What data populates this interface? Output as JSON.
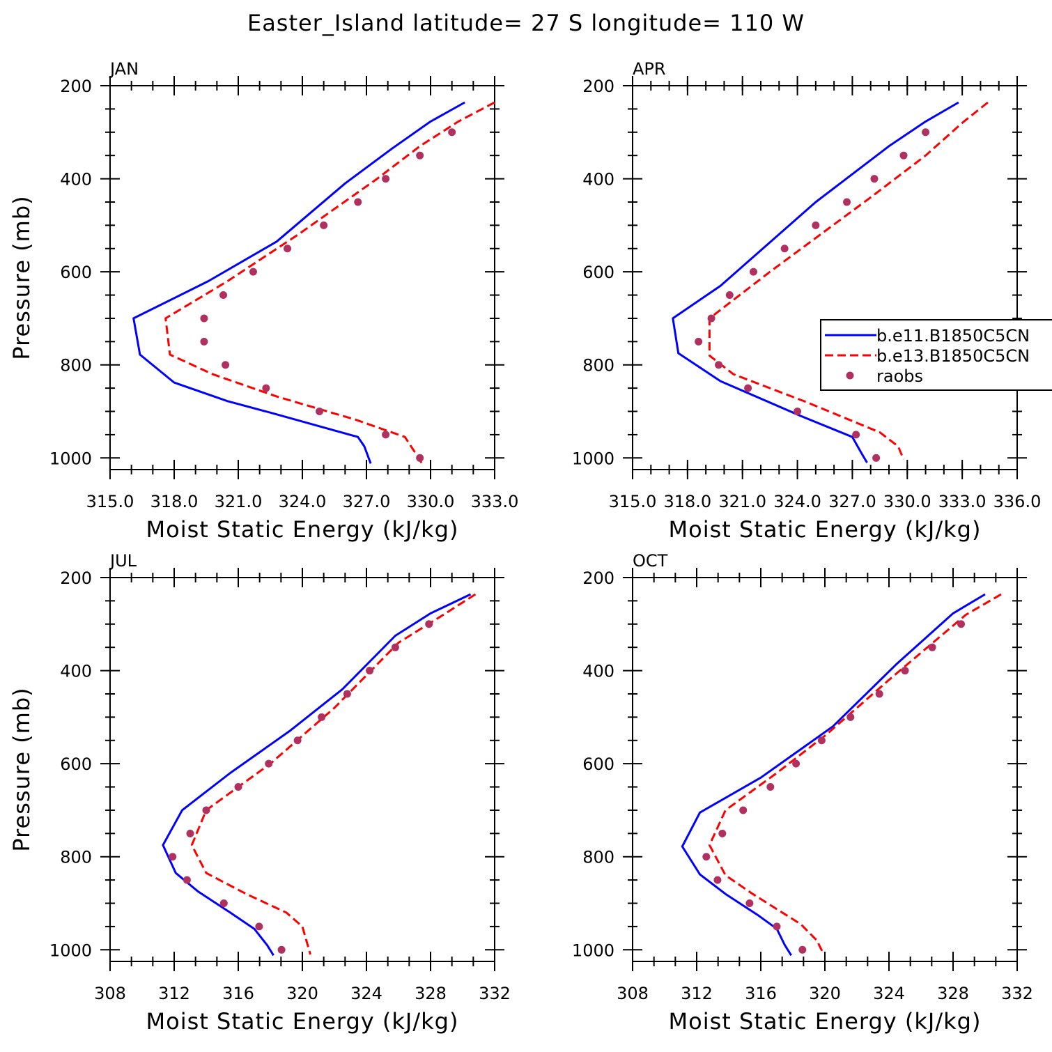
{
  "title": "Easter_Island  latitude= 27 S longitude= 110 W",
  "colors": {
    "b11": "#0000ff",
    "b13": "#ff0000",
    "raobs": "#b03060",
    "axis": "#000000"
  },
  "legend": {
    "placement": "right, in APR panel",
    "entries": [
      {
        "label": "b.e11.B1850C5CN",
        "style": "solid",
        "color": "#0000ff"
      },
      {
        "label": "b.e13.B1850C5CN",
        "style": "dashed",
        "color": "#ff0000"
      },
      {
        "label": "raobs",
        "style": "marker",
        "color": "#b03060"
      }
    ]
  },
  "chart_data": [
    {
      "type": "line",
      "panel": "JAN",
      "xlabel": "Moist Static Energy (kJ/kg)",
      "ylabel": "Pressure (mb)",
      "xlim": [
        315,
        333
      ],
      "ylim": [
        1000,
        200
      ],
      "xticks": [
        315,
        318,
        321,
        324,
        327,
        330,
        333
      ],
      "xtick_labels": [
        "315.0",
        "318.0",
        "321.0",
        "324.0",
        "327.0",
        "330.0",
        "333.0"
      ],
      "yticks": [
        200,
        400,
        600,
        800,
        1000
      ],
      "series": [
        {
          "name": "b.e11.B1850C5CN",
          "style": "solid",
          "color": "#0000ff",
          "x": [
            331.6,
            330.0,
            328.2,
            326.0,
            322.8,
            319.6,
            316.1,
            316.4,
            318.0,
            320.5,
            322.7,
            326.6,
            326.9,
            327.2
          ],
          "y": [
            236,
            277,
            335,
            410,
            535,
            620,
            700,
            778,
            838,
            878,
            905,
            955,
            975,
            1012
          ]
        },
        {
          "name": "b.e13.B1850C5CN",
          "style": "dashed",
          "color": "#ff0000",
          "x": [
            333.0,
            331.3,
            329.5,
            327.5,
            323.8,
            320.5,
            317.6,
            317.8,
            319.8,
            322.8,
            326.5,
            328.8,
            329.3,
            329.6
          ],
          "y": [
            236,
            277,
            330,
            400,
            520,
            620,
            700,
            778,
            820,
            868,
            918,
            955,
            990,
            1012
          ]
        }
      ],
      "points": {
        "name": "raobs",
        "x": [
          331.0,
          329.5,
          327.9,
          326.6,
          325.0,
          323.3,
          321.7,
          320.3,
          319.4,
          319.4,
          320.4,
          322.3,
          324.8,
          327.9,
          329.5
        ],
        "y": [
          300,
          350,
          400,
          450,
          500,
          550,
          600,
          650,
          700,
          750,
          800,
          850,
          900,
          950,
          1000
        ]
      }
    },
    {
      "type": "line",
      "panel": "APR",
      "xlabel": "Moist Static Energy (kJ/kg)",
      "ylabel": "",
      "xlim": [
        315,
        336
      ],
      "ylim": [
        1000,
        200
      ],
      "xticks": [
        315,
        318,
        321,
        324,
        327,
        330,
        333,
        336
      ],
      "xtick_labels": [
        "315.0",
        "318.0",
        "321.0",
        "324.0",
        "327.0",
        "330.0",
        "333.0",
        "336.0"
      ],
      "yticks": [
        200,
        400,
        600,
        800,
        1000
      ],
      "series": [
        {
          "name": "b.e11.B1850C5CN",
          "style": "solid",
          "color": "#0000ff",
          "x": [
            332.8,
            331.0,
            329.0,
            325.0,
            319.8,
            317.2,
            317.5,
            319.8,
            324.2,
            327.0,
            327.5,
            327.8
          ],
          "y": [
            236,
            277,
            330,
            450,
            630,
            700,
            775,
            835,
            910,
            955,
            990,
            1010
          ]
        },
        {
          "name": "b.e13.B1850C5CN",
          "style": "dashed",
          "color": "#ff0000",
          "x": [
            334.4,
            333.0,
            331.0,
            328.0,
            322.5,
            319.2,
            319.2,
            320.5,
            324.5,
            328.5,
            329.5,
            329.8
          ],
          "y": [
            236,
            280,
            350,
            440,
            600,
            700,
            780,
            820,
            880,
            945,
            975,
            1003
          ]
        }
      ],
      "points": {
        "name": "raobs",
        "x": [
          331.0,
          329.8,
          328.2,
          326.7,
          325.0,
          323.3,
          321.6,
          320.3,
          319.3,
          318.6,
          319.7,
          321.3,
          324.0,
          327.2,
          328.3
        ],
        "y": [
          300,
          350,
          400,
          450,
          500,
          550,
          600,
          650,
          700,
          750,
          800,
          850,
          900,
          950,
          1000
        ]
      }
    },
    {
      "type": "line",
      "panel": "JUL",
      "xlabel": "Moist Static Energy (kJ/kg)",
      "ylabel": "Pressure (mb)",
      "xlim": [
        308,
        332
      ],
      "ylim": [
        1000,
        200
      ],
      "xticks": [
        308,
        312,
        316,
        320,
        324,
        328,
        332
      ],
      "xtick_labels": [
        "308",
        "312",
        "316",
        "320",
        "324",
        "328",
        "332"
      ],
      "yticks": [
        200,
        400,
        600,
        800,
        1000
      ],
      "series": [
        {
          "name": "b.e11.B1850C5CN",
          "style": "solid",
          "color": "#0000ff",
          "x": [
            330.5,
            328.0,
            325.8,
            322.5,
            319.2,
            315.5,
            312.5,
            311.3,
            312.1,
            313.5,
            315.5,
            317.0,
            317.8,
            318.2
          ],
          "y": [
            236,
            277,
            325,
            440,
            530,
            620,
            700,
            775,
            835,
            875,
            920,
            955,
            990,
            1012
          ]
        },
        {
          "name": "b.e13.B1850C5CN",
          "style": "dashed",
          "color": "#ff0000",
          "x": [
            330.8,
            328.8,
            326.0,
            322.0,
            318.0,
            316.0,
            314.0,
            313.1,
            314.0,
            316.5,
            319.0,
            320.0,
            320.5
          ],
          "y": [
            236,
            280,
            340,
            480,
            600,
            650,
            700,
            775,
            835,
            880,
            920,
            950,
            1010
          ]
        }
      ],
      "points": {
        "name": "raobs",
        "x": [
          327.9,
          325.8,
          324.2,
          322.8,
          321.2,
          319.7,
          317.9,
          316.0,
          314.0,
          313.0,
          311.9,
          312.8,
          315.1,
          317.3,
          318.7
        ],
        "y": [
          300,
          350,
          400,
          450,
          500,
          550,
          600,
          650,
          700,
          750,
          800,
          850,
          900,
          950,
          1000
        ]
      }
    },
    {
      "type": "line",
      "panel": "OCT",
      "xlabel": "Moist Static Energy (kJ/kg)",
      "ylabel": "",
      "xlim": [
        308,
        332
      ],
      "ylim": [
        1000,
        200
      ],
      "xticks": [
        308,
        312,
        316,
        320,
        324,
        328,
        332
      ],
      "xtick_labels": [
        "308",
        "312",
        "316",
        "320",
        "324",
        "328",
        "332"
      ],
      "yticks": [
        200,
        400,
        600,
        800,
        1000
      ],
      "series": [
        {
          "name": "b.e11.B1850C5CN",
          "style": "solid",
          "color": "#0000ff",
          "x": [
            330.0,
            328.0,
            324.5,
            320.5,
            316.0,
            312.2,
            311.1,
            312.2,
            313.8,
            315.8,
            317.0,
            317.5,
            317.9
          ],
          "y": [
            236,
            277,
            385,
            520,
            630,
            705,
            778,
            838,
            880,
            925,
            955,
            990,
            1012
          ]
        },
        {
          "name": "b.e13.B1850C5CN",
          "style": "dashed",
          "color": "#ff0000",
          "x": [
            331.0,
            328.8,
            324.0,
            320.0,
            317.0,
            313.8,
            312.8,
            313.8,
            315.5,
            318.5,
            319.5,
            319.9
          ],
          "y": [
            236,
            280,
            420,
            540,
            620,
            700,
            775,
            840,
            880,
            945,
            980,
            1008
          ]
        }
      ],
      "points": {
        "name": "raobs",
        "x": [
          328.5,
          326.7,
          325.0,
          323.4,
          321.6,
          319.8,
          318.2,
          316.6,
          314.9,
          313.6,
          312.6,
          313.3,
          315.3,
          317.0,
          318.6
        ],
        "y": [
          300,
          350,
          400,
          450,
          500,
          550,
          600,
          650,
          700,
          750,
          800,
          850,
          900,
          950,
          1000
        ]
      }
    }
  ]
}
